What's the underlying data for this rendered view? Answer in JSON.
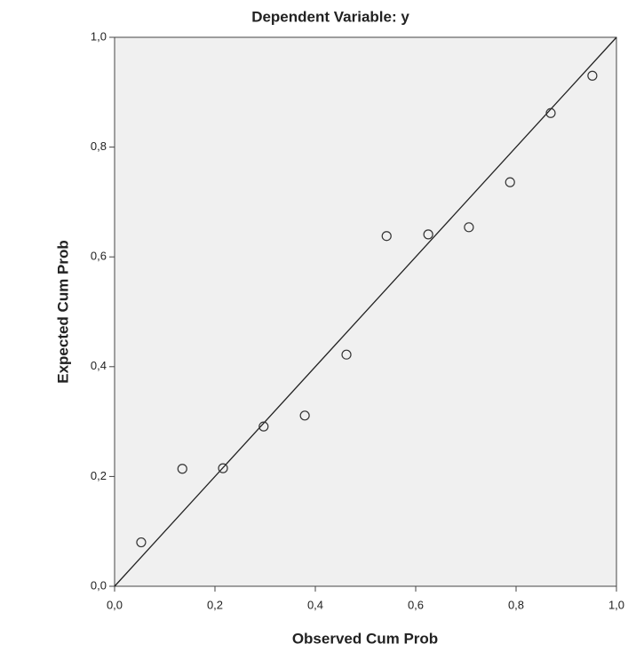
{
  "chart_data": {
    "type": "scatter",
    "title": "Dependent Variable: y",
    "xlabel": "Observed Cum Prob",
    "ylabel": "Expected Cum Prob",
    "x": [
      0.053,
      0.135,
      0.216,
      0.297,
      0.379,
      0.462,
      0.542,
      0.625,
      0.706,
      0.788,
      0.869,
      0.952
    ],
    "values": [
      0.08,
      0.214,
      0.215,
      0.291,
      0.311,
      0.422,
      0.638,
      0.641,
      0.654,
      0.736,
      0.862,
      0.93
    ],
    "color": "#333333",
    "xlim": [
      0,
      1
    ],
    "ylim": [
      0,
      1
    ],
    "xticks": [
      {
        "value": 0,
        "label": "0,0"
      },
      {
        "value": 0.2,
        "label": "0,2"
      },
      {
        "value": 0.4,
        "label": "0,4"
      },
      {
        "value": 0.6,
        "label": "0,6"
      },
      {
        "value": 0.8,
        "label": "0,8"
      },
      {
        "value": 1,
        "label": "1,0"
      }
    ],
    "yticks": [
      {
        "value": 0,
        "label": "0,0"
      },
      {
        "value": 0.2,
        "label": "0,2"
      },
      {
        "value": 0.4,
        "label": "0,4"
      },
      {
        "value": 0.6,
        "label": "0,6"
      },
      {
        "value": 0.8,
        "label": "0,8"
      },
      {
        "value": 1,
        "label": "1,0"
      }
    ],
    "reference_line": true
  }
}
